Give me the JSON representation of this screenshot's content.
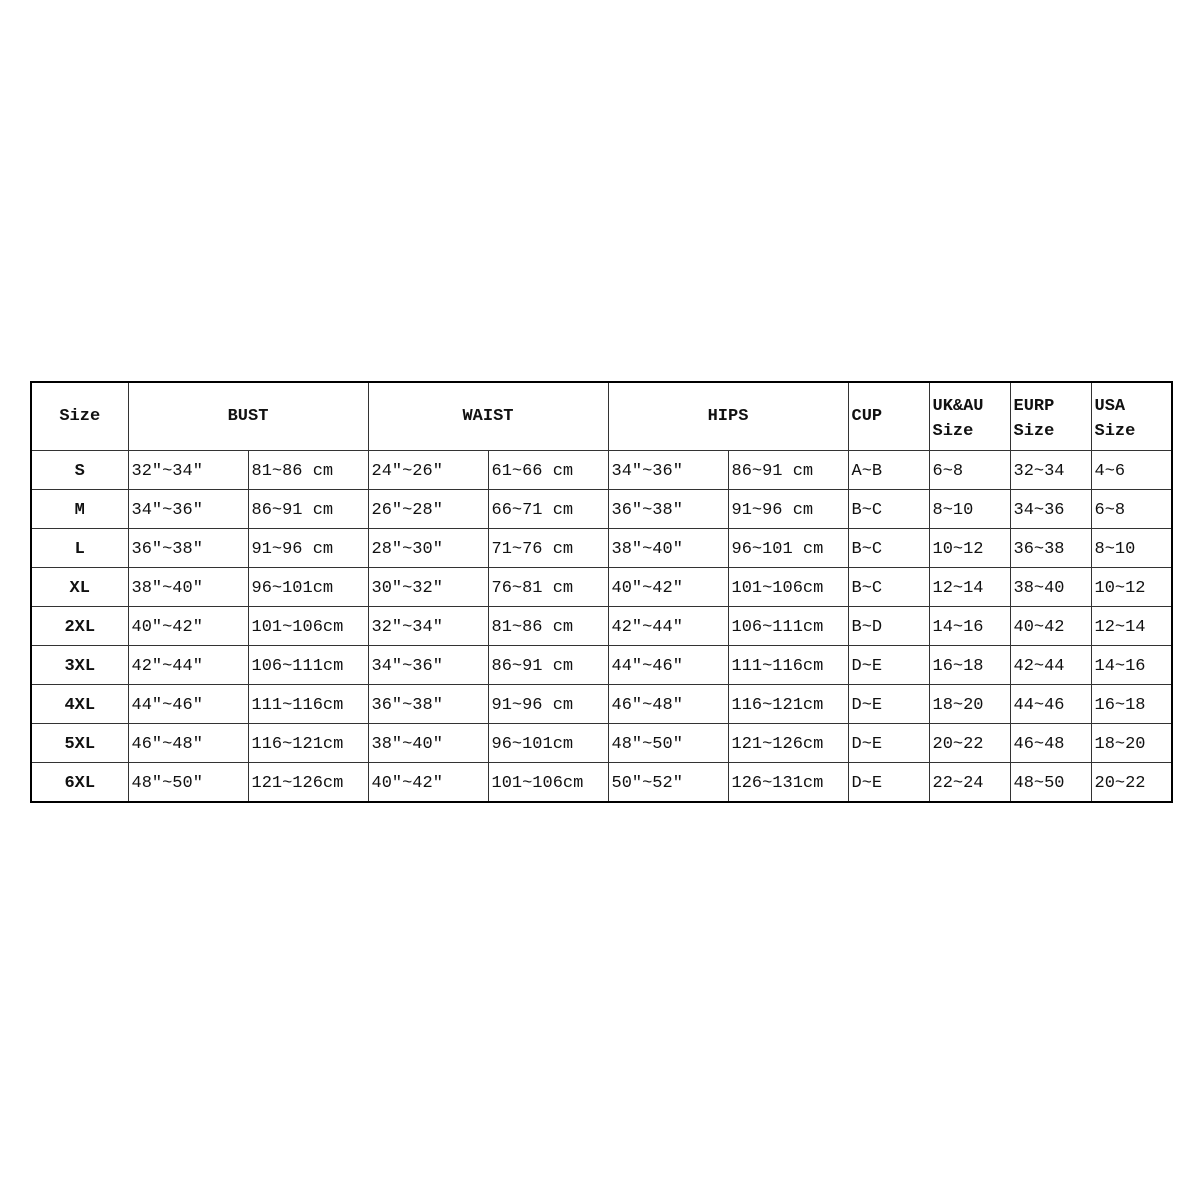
{
  "headers": {
    "size": "Size",
    "bust": "BUST",
    "waist": "WAIST",
    "hips": "HIPS",
    "cup": "CUP",
    "ukau": [
      "UK&AU",
      "Size"
    ],
    "eurp": [
      "EURP",
      "Size"
    ],
    "usa": [
      "USA",
      "Size"
    ]
  },
  "rows": [
    {
      "size": "S",
      "bust_in": "32″~34″",
      "bust_cm": "81~86 cm",
      "waist_in": "24″~26″",
      "waist_cm": "61~66 cm",
      "hips_in": "34″~36″",
      "hips_cm": "86~91 cm",
      "cup": "A~B",
      "ukau": "6~8",
      "eurp": "32~34",
      "usa": "4~6"
    },
    {
      "size": "M",
      "bust_in": "34″~36″",
      "bust_cm": "86~91 cm",
      "waist_in": "26″~28″",
      "waist_cm": "66~71 cm",
      "hips_in": "36″~38″",
      "hips_cm": "91~96 cm",
      "cup": "B~C",
      "ukau": "8~10",
      "eurp": "34~36",
      "usa": "6~8"
    },
    {
      "size": "L",
      "bust_in": "36″~38″",
      "bust_cm": "91~96 cm",
      "waist_in": "28″~30″",
      "waist_cm": "71~76 cm",
      "hips_in": "38″~40″",
      "hips_cm": "96~101 cm",
      "cup": "B~C",
      "ukau": "10~12",
      "eurp": "36~38",
      "usa": "8~10"
    },
    {
      "size": "XL",
      "bust_in": "38″~40″",
      "bust_cm": "96~101cm",
      "waist_in": "30″~32″",
      "waist_cm": "76~81 cm",
      "hips_in": "40″~42″",
      "hips_cm": "101~106cm",
      "cup": "B~C",
      "ukau": "12~14",
      "eurp": "38~40",
      "usa": "10~12"
    },
    {
      "size": "2XL",
      "bust_in": "40″~42″",
      "bust_cm": "101~106cm",
      "waist_in": "32″~34″",
      "waist_cm": "81~86 cm",
      "hips_in": "42″~44″",
      "hips_cm": "106~111cm",
      "cup": "B~D",
      "ukau": "14~16",
      "eurp": "40~42",
      "usa": "12~14"
    },
    {
      "size": "3XL",
      "bust_in": "42″~44″",
      "bust_cm": "106~111cm",
      "waist_in": "34″~36″",
      "waist_cm": "86~91 cm",
      "hips_in": "44″~46″",
      "hips_cm": "111~116cm",
      "cup": "D~E",
      "ukau": "16~18",
      "eurp": "42~44",
      "usa": "14~16"
    },
    {
      "size": "4XL",
      "bust_in": "44″~46″",
      "bust_cm": "111~116cm",
      "waist_in": "36″~38″",
      "waist_cm": "91~96 cm",
      "hips_in": "46″~48″",
      "hips_cm": "116~121cm",
      "cup": "D~E",
      "ukau": "18~20",
      "eurp": "44~46",
      "usa": "16~18"
    },
    {
      "size": "5XL",
      "bust_in": "46″~48″",
      "bust_cm": "116~121cm",
      "waist_in": "38″~40″",
      "waist_cm": "96~101cm",
      "hips_in": "48″~50″",
      "hips_cm": "121~126cm",
      "cup": "D~E",
      "ukau": "20~22",
      "eurp": "46~48",
      "usa": "18~20"
    },
    {
      "size": "6XL",
      "bust_in": "48″~50″",
      "bust_cm": "121~126cm",
      "waist_in": "40″~42″",
      "waist_cm": "101~106cm",
      "hips_in": "50″~52″",
      "hips_cm": "126~131cm",
      "cup": "D~E",
      "ukau": "22~24",
      "eurp": "48~50",
      "usa": "20~22"
    }
  ]
}
